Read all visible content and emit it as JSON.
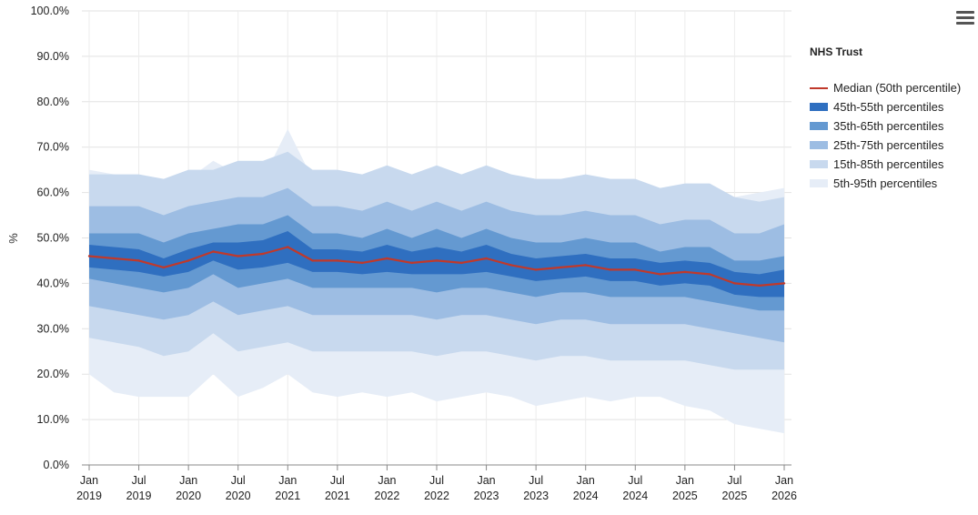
{
  "chart_data": {
    "type": "area",
    "title": "",
    "xlabel": "",
    "ylabel": "%",
    "ylim": [
      0,
      100
    ],
    "yticks": [
      "0.0%",
      "10.0%",
      "20.0%",
      "30.0%",
      "40.0%",
      "50.0%",
      "60.0%",
      "70.0%",
      "80.0%",
      "90.0%",
      "100.0%"
    ],
    "x_start": "2019-01",
    "x_end": "2026-01",
    "xticks": [
      {
        "month": "Jan",
        "year": "2019"
      },
      {
        "month": "Jul",
        "year": "2019"
      },
      {
        "month": "Jan",
        "year": "2020"
      },
      {
        "month": "Jul",
        "year": "2020"
      },
      {
        "month": "Jan",
        "year": "2021"
      },
      {
        "month": "Jul",
        "year": "2021"
      },
      {
        "month": "Jan",
        "year": "2022"
      },
      {
        "month": "Jul",
        "year": "2022"
      },
      {
        "month": "Jan",
        "year": "2023"
      },
      {
        "month": "Jul",
        "year": "2023"
      },
      {
        "month": "Jan",
        "year": "2024"
      },
      {
        "month": "Jul",
        "year": "2024"
      },
      {
        "month": "Jan",
        "year": "2025"
      },
      {
        "month": "Jul",
        "year": "2025"
      },
      {
        "month": "Jan",
        "year": "2026"
      }
    ],
    "x_months": [
      "2019-01",
      "2019-04",
      "2019-07",
      "2019-10",
      "2020-01",
      "2020-04",
      "2020-07",
      "2020-10",
      "2021-01",
      "2021-04",
      "2021-07",
      "2021-10",
      "2022-01",
      "2022-04",
      "2022-07",
      "2022-10",
      "2023-01",
      "2023-04",
      "2023-07",
      "2023-10",
      "2024-01",
      "2024-04",
      "2024-07",
      "2024-10",
      "2025-01",
      "2025-04",
      "2025-07",
      "2025-10",
      "2026-01"
    ],
    "median": [
      46,
      45.5,
      45,
      43.5,
      45,
      47,
      46,
      46.5,
      48,
      45,
      45,
      44.5,
      45.5,
      44.5,
      45,
      44.5,
      45.5,
      44,
      43,
      43.5,
      44,
      43,
      43,
      42,
      42.5,
      42,
      40,
      39.5,
      40
    ],
    "bands": [
      {
        "name": "5th-95th percentiles",
        "color": "#e6edf7",
        "low": [
          20,
          16,
          15,
          15,
          15,
          20,
          15,
          17,
          20,
          16,
          15,
          16,
          15,
          16,
          14,
          15,
          16,
          15,
          13,
          14,
          15,
          14,
          15,
          15,
          13,
          12,
          9,
          8,
          7
        ],
        "high": [
          65,
          64,
          62,
          61,
          63,
          67,
          64,
          63,
          74,
          63,
          63,
          63,
          63,
          63,
          62,
          63,
          64,
          62,
          61,
          62,
          61,
          61,
          60,
          60,
          61,
          60,
          59,
          60,
          61
        ]
      },
      {
        "name": "15th-85th percentiles",
        "color": "#c8d9ee",
        "low": [
          28,
          27,
          26,
          24,
          25,
          29,
          25,
          26,
          27,
          25,
          25,
          25,
          25,
          25,
          24,
          25,
          25,
          24,
          23,
          24,
          24,
          23,
          23,
          23,
          23,
          22,
          21,
          21,
          21
        ]
      },
      {
        "name": "25th-75th percentiles",
        "color": "#9dbde3",
        "low": [
          35,
          34,
          33,
          32,
          33,
          36,
          33,
          34,
          35,
          33,
          33,
          33,
          33,
          33,
          32,
          33,
          33,
          32,
          31,
          32,
          32,
          31,
          31,
          31,
          31,
          30,
          29,
          28,
          27
        ]
      },
      {
        "name": "35th-65th percentiles",
        "color": "#6499d1",
        "low": [
          41,
          40,
          39,
          38,
          39,
          42,
          39,
          40,
          41,
          39,
          39,
          39,
          39,
          39,
          38,
          39,
          39,
          38,
          37,
          38,
          38,
          37,
          37,
          37,
          37,
          36,
          35,
          34,
          34
        ]
      },
      {
        "name": "45th-55th percentiles",
        "color": "#2f6fc0",
        "low": [
          43.5,
          43,
          42.5,
          41.5,
          42.5,
          45,
          43,
          43.5,
          44.5,
          42.5,
          42.5,
          42,
          42.5,
          42,
          42,
          42,
          42.5,
          41.5,
          40.5,
          41,
          41.5,
          40.5,
          40.5,
          39.5,
          40,
          39.5,
          37.5,
          37,
          37
        ]
      }
    ],
    "legend": {
      "title": "NHS Trust",
      "position": "right",
      "items": [
        {
          "label": "Median (50th percentile)",
          "color": "#c0392b",
          "kind": "line"
        },
        {
          "label": "45th-55th percentiles",
          "color": "#2f6fc0",
          "kind": "band"
        },
        {
          "label": "35th-65th percentiles",
          "color": "#6499d1",
          "kind": "band"
        },
        {
          "label": "25th-75th percentiles",
          "color": "#9dbde3",
          "kind": "band"
        },
        {
          "label": "15th-85th percentiles",
          "color": "#c8d9ee",
          "kind": "band"
        },
        {
          "label": "5th-95th percentiles",
          "color": "#e6edf7",
          "kind": "band"
        }
      ]
    },
    "grid": true,
    "median_color": "#c0392b"
  },
  "menu_icon": "hamburger-menu-icon"
}
